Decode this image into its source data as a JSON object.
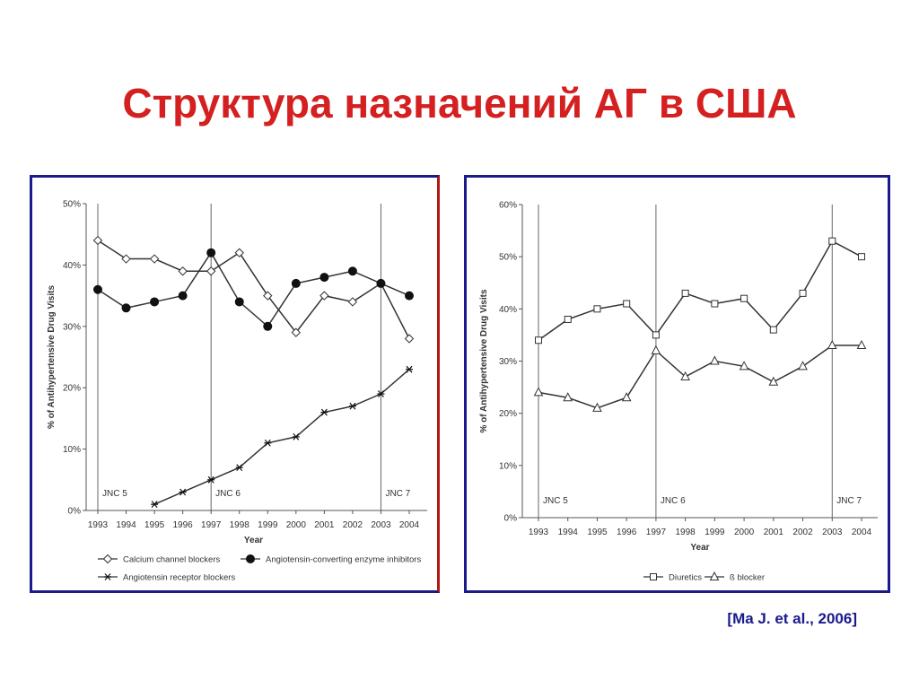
{
  "slide": {
    "title": "Структура назначений АГ в США",
    "citation": "[Ma J. et al., 2006]"
  },
  "colors": {
    "title": "#d42020",
    "frame": "#1a1a8c",
    "line": "#333333"
  },
  "chart_data": [
    {
      "type": "line",
      "x": [
        1993,
        1994,
        1995,
        1996,
        1997,
        1998,
        1999,
        2000,
        2001,
        2002,
        2003,
        2004
      ],
      "xlabel": "Year",
      "ylabel": "% of Antihypertensive Drug Visits",
      "ylim": [
        0,
        50
      ],
      "yticks": [
        "0%",
        "10%",
        "20%",
        "30%",
        "40%",
        "50%"
      ],
      "annotations": [
        {
          "x": 1993,
          "label": "JNC 5"
        },
        {
          "x": 1997,
          "label": "JNC 6"
        },
        {
          "x": 2003,
          "label": "JNC 7"
        }
      ],
      "legend_position": "bottom",
      "series": [
        {
          "name": "Calcium channel blockers",
          "marker": "diamond-open",
          "values": [
            44,
            41,
            41,
            39,
            39,
            42,
            35,
            29,
            35,
            34,
            37,
            28
          ]
        },
        {
          "name": "Angiotensin-converting enzyme inhibitors",
          "marker": "circle-filled",
          "values": [
            36,
            33,
            34,
            35,
            42,
            34,
            30,
            37,
            38,
            39,
            37,
            35
          ]
        },
        {
          "name": "Angiotensin receptor blockers",
          "marker": "star",
          "values": [
            null,
            null,
            1,
            3,
            5,
            7,
            11,
            12,
            16,
            17,
            19,
            23
          ]
        }
      ]
    },
    {
      "type": "line",
      "x": [
        1993,
        1994,
        1995,
        1996,
        1997,
        1998,
        1999,
        2000,
        2001,
        2002,
        2003,
        2004
      ],
      "xlabel": "Year",
      "ylabel": "% of Antihypertensive Drug Visits",
      "ylim": [
        0,
        60
      ],
      "yticks": [
        "0%",
        "10%",
        "20%",
        "30%",
        "40%",
        "50%",
        "60%"
      ],
      "annotations": [
        {
          "x": 1993,
          "label": "JNC 5"
        },
        {
          "x": 1997,
          "label": "JNC 6"
        },
        {
          "x": 2003,
          "label": "JNC 7"
        }
      ],
      "legend_position": "bottom",
      "series": [
        {
          "name": "Diuretics",
          "marker": "square-open",
          "values": [
            34,
            38,
            40,
            41,
            35,
            43,
            41,
            42,
            36,
            43,
            53,
            50
          ]
        },
        {
          "name": "ß blocker",
          "marker": "triangle-open",
          "values": [
            24,
            23,
            21,
            23,
            32,
            27,
            30,
            29,
            26,
            29,
            33,
            33
          ]
        }
      ]
    }
  ]
}
